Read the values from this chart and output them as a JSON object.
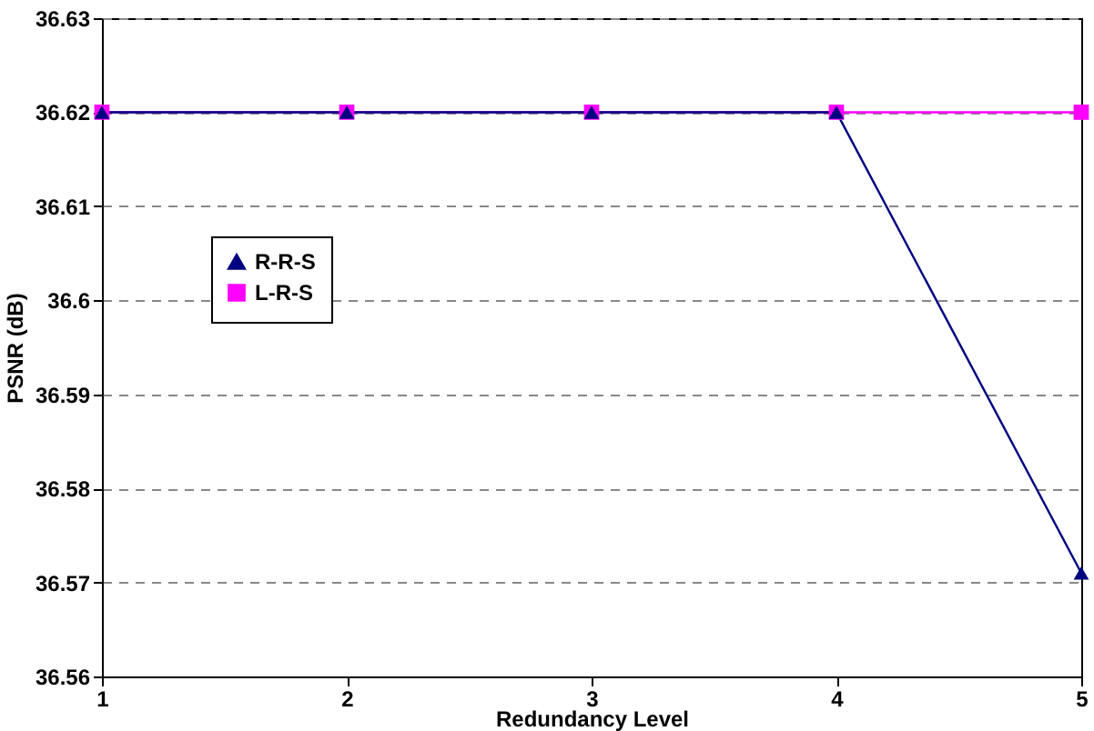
{
  "chart_data": {
    "type": "line",
    "xlabel": "Redundancy Level",
    "ylabel": "PSNR (dB)",
    "x": [
      1,
      2,
      3,
      4,
      5
    ],
    "series": [
      {
        "name": "R-R-S",
        "color": "#000080",
        "marker": "triangle",
        "values": [
          36.62,
          36.62,
          36.62,
          36.62,
          36.571
        ]
      },
      {
        "name": "L-R-S",
        "color": "#ff00ff",
        "marker": "square",
        "values": [
          36.62,
          36.62,
          36.62,
          36.62,
          36.62
        ]
      }
    ],
    "xlim": [
      1,
      5
    ],
    "xticks": [
      1,
      2,
      3,
      4,
      5
    ],
    "ylim": [
      36.56,
      36.63
    ],
    "yticks": [
      36.56,
      36.57,
      36.58,
      36.59,
      36.6,
      36.61,
      36.62,
      36.63
    ],
    "grid": "y",
    "legend": "left",
    "line_style": "solid"
  }
}
